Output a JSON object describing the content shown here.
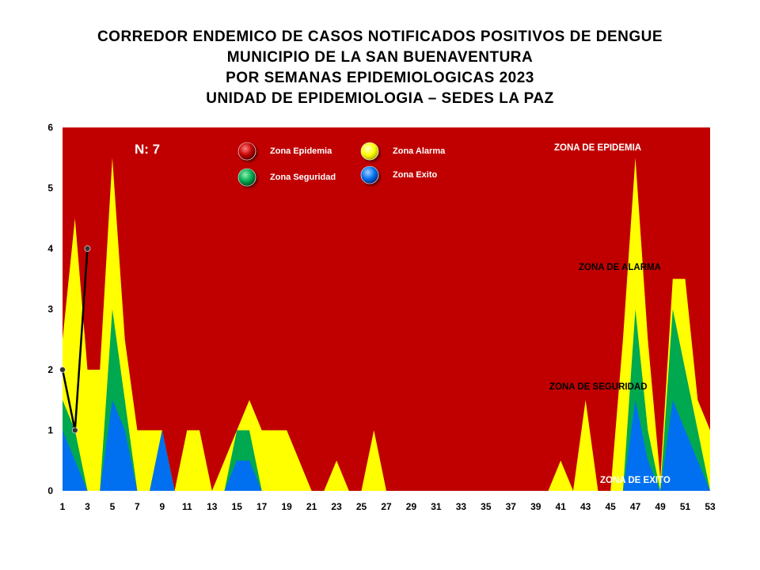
{
  "title_lines": [
    "CORREDOR ENDEMICO DE CASOS NOTIFICADOS POSITIVOS DE DENGUE",
    "MUNICIPIO DE LA SAN BUENAVENTURA",
    "POR SEMANAS EPIDEMIOLOGICAS 2023",
    "UNIDAD DE EPIDEMIOLOGIA – SEDES LA PAZ"
  ],
  "colors": {
    "epidemia": "#C00000",
    "alarma": "#FFFF00",
    "seguridad": "#00A850",
    "exito": "#0070F0",
    "cases": "#000000"
  },
  "chart_data": {
    "type": "area",
    "n_label": "N: 7",
    "xlim": [
      1,
      53
    ],
    "ylim": [
      0,
      6
    ],
    "x_ticks": [
      1,
      3,
      5,
      7,
      9,
      11,
      13,
      15,
      17,
      19,
      21,
      23,
      25,
      27,
      29,
      31,
      33,
      35,
      37,
      39,
      41,
      43,
      45,
      47,
      49,
      51,
      53
    ],
    "y_ticks": [
      0,
      1,
      2,
      3,
      4,
      5,
      6
    ],
    "legend": [
      {
        "label": "Zona Epidemia",
        "key": "epidemia"
      },
      {
        "label": "Zona Alarma",
        "key": "alarma"
      },
      {
        "label": "Zona Seguridad",
        "key": "seguridad"
      },
      {
        "label": "Zona Exito",
        "key": "exito"
      }
    ],
    "zone_labels": {
      "epidemia": "ZONA DE EPIDEMIA",
      "alarma": "ZONA DE ALARMA",
      "seguridad": "ZONA DE  SEGURIDAD",
      "exito": "ZONA DE  EXITO"
    },
    "x": [
      1,
      2,
      3,
      4,
      5,
      6,
      7,
      8,
      9,
      10,
      11,
      12,
      13,
      14,
      15,
      16,
      17,
      18,
      19,
      20,
      21,
      22,
      23,
      24,
      25,
      26,
      27,
      28,
      29,
      30,
      31,
      32,
      33,
      34,
      35,
      36,
      37,
      38,
      39,
      40,
      41,
      42,
      43,
      44,
      45,
      46,
      47,
      48,
      49,
      50,
      51,
      52,
      53
    ],
    "series": [
      {
        "key": "alarma",
        "values": [
          2.5,
          4.5,
          2,
          2,
          5.5,
          2.5,
          1,
          1,
          1,
          0,
          1,
          1,
          0,
          0.5,
          1,
          1.5,
          1,
          1,
          1,
          0.5,
          0,
          0,
          0.5,
          0,
          0,
          1,
          0,
          0,
          0,
          0,
          0,
          0,
          0,
          0,
          0,
          0,
          0,
          0,
          0,
          0,
          0.5,
          0,
          1.5,
          0,
          0,
          2.5,
          5.5,
          2.5,
          0.2,
          3.5,
          3.5,
          1.5,
          1
        ]
      },
      {
        "key": "seguridad",
        "values": [
          1.5,
          1,
          0,
          0,
          3,
          1.5,
          0,
          0,
          1,
          0,
          0,
          0,
          0,
          0,
          1,
          1,
          0,
          0,
          0,
          0,
          0,
          0,
          0,
          0,
          0,
          0,
          0,
          0,
          0,
          0,
          0,
          0,
          0,
          0,
          0,
          0,
          0,
          0,
          0,
          0,
          0,
          0,
          0,
          0,
          0,
          0,
          3,
          1,
          0,
          3,
          2,
          1,
          0
        ]
      },
      {
        "key": "exito",
        "values": [
          1,
          0.5,
          0,
          0,
          1.5,
          1,
          0,
          0,
          1,
          0,
          0,
          0,
          0,
          0,
          0.5,
          0.5,
          0,
          0,
          0,
          0,
          0,
          0,
          0,
          0,
          0,
          0,
          0,
          0,
          0,
          0,
          0,
          0,
          0,
          0,
          0,
          0,
          0,
          0,
          0,
          0,
          0,
          0,
          0,
          0,
          0,
          0,
          1.5,
          0.5,
          0,
          1.5,
          1,
          0.5,
          0
        ]
      }
    ],
    "cases": {
      "x": [
        1,
        2,
        3
      ],
      "values": [
        2,
        1,
        4
      ]
    }
  }
}
